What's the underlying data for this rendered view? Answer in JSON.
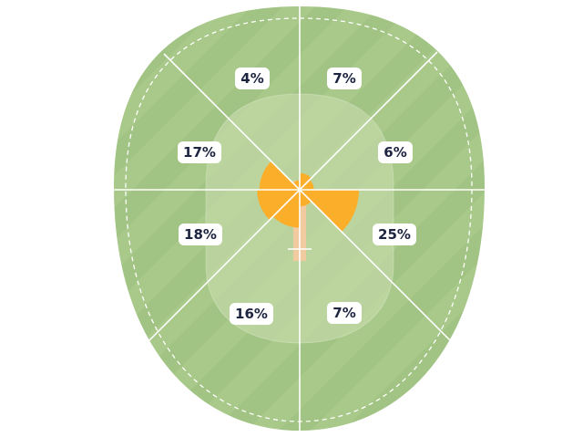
{
  "chart_data": {
    "type": "pie",
    "title": "",
    "zone_order": "clockwise from top, starting right of the pitch line",
    "zones": [
      {
        "id": "zone-1",
        "label": "7%",
        "value": 7
      },
      {
        "id": "zone-2",
        "label": "6%",
        "value": 6
      },
      {
        "id": "zone-3",
        "label": "25%",
        "value": 25
      },
      {
        "id": "zone-4",
        "label": "7%",
        "value": 7
      },
      {
        "id": "zone-5",
        "label": "16%",
        "value": 16
      },
      {
        "id": "zone-6",
        "label": "18%",
        "value": 18
      },
      {
        "id": "zone-7",
        "label": "17%",
        "value": 17
      },
      {
        "id": "zone-8",
        "label": "4%",
        "value": 4
      }
    ],
    "highlight_color": "#fbae2a",
    "field_color": "#a8c989",
    "field_color_dark": "#9fc181",
    "inner_circle_color": "#c3d9a7",
    "pitch_color": "#f2caa0",
    "line_color": "#ffffff",
    "label_text_color": "#1d2440"
  }
}
